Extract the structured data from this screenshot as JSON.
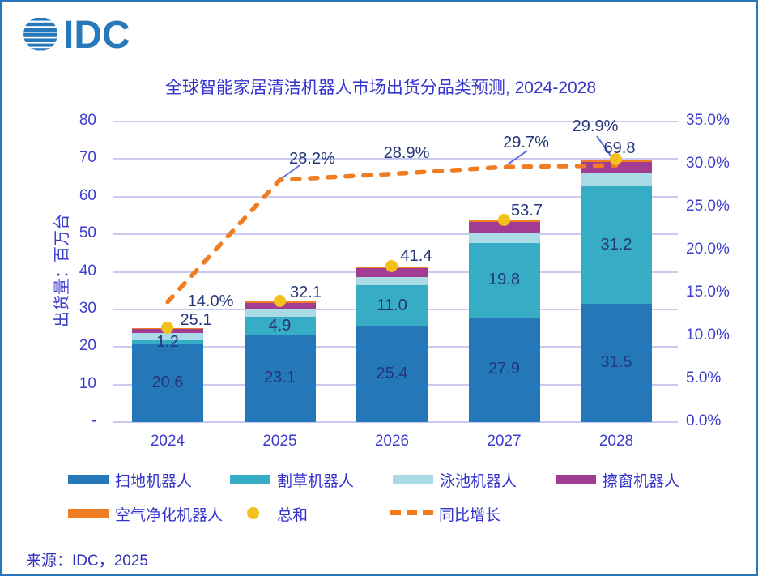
{
  "logo": {
    "text": "IDC"
  },
  "title": "全球智能家居清洁机器人市场出货分品类预测, 2024-2028",
  "source": "来源：IDC，2025",
  "colors": {
    "frame_border": "#2878BC",
    "axis_text": "#3C3CCE",
    "data_label_text": "#25357A",
    "gridline": "#C8CAF1",
    "leader_line": "#6272DC",
    "title_text": "#3434CE",
    "legend_text": "#3333CC"
  },
  "chart_data": {
    "type": "bar",
    "subtype": "stacked-columns-with-growth-line",
    "title": "全球智能家居清洁机器人市场出货分品类预测, 2024-2028",
    "categories": [
      "2024",
      "2025",
      "2026",
      "2027",
      "2028"
    ],
    "series": [
      {
        "name": "扫地机器人",
        "color": "#2478B8",
        "values": [
          20.6,
          23.1,
          25.4,
          27.9,
          31.5
        ],
        "labels": [
          "20.6",
          "23.1",
          "25.4",
          "27.9",
          "31.5"
        ],
        "estimated": false
      },
      {
        "name": "割草机器人",
        "color": "#36ADC5",
        "values": [
          1.2,
          4.9,
          11.0,
          19.8,
          31.2
        ],
        "labels": [
          "1.2",
          "4.9",
          "11.0",
          "19.8",
          "31.2"
        ],
        "estimated": false
      },
      {
        "name": "泳池机器人",
        "color": "#A9DAE6",
        "values": [
          1.9,
          2.2,
          2.3,
          2.5,
          3.4
        ],
        "labels": null,
        "estimated": true
      },
      {
        "name": "擦窗机器人",
        "color": "#A23B92",
        "values": [
          1.0,
          1.5,
          2.2,
          3.0,
          3.2
        ],
        "labels": null,
        "estimated": true
      },
      {
        "name": "空气净化机器人",
        "color": "#F07D22",
        "values": [
          0.4,
          0.4,
          0.5,
          0.5,
          0.5
        ],
        "labels": null,
        "estimated": true
      }
    ],
    "totals": {
      "name": "总和",
      "marker": "dot",
      "marker_color": "#F2C11C",
      "values": [
        25.1,
        32.1,
        41.4,
        53.7,
        69.8
      ],
      "labels": [
        "25.1",
        "32.1",
        "41.4",
        "53.7",
        "69.8"
      ]
    },
    "growth_line": {
      "name": "同比增长",
      "style": "dashed",
      "color": "#F07D22",
      "values_pct": [
        14.0,
        28.2,
        28.9,
        29.7,
        29.9
      ],
      "labels": [
        "14.0%",
        "28.2%",
        "28.9%",
        "29.7%",
        "29.9%"
      ]
    },
    "y_left_axis": {
      "title": "出货量：百万台",
      "ticks": [
        "-",
        "10",
        "20",
        "30",
        "40",
        "50",
        "60",
        "70",
        "80"
      ],
      "min": 0,
      "max": 80
    },
    "y_right_axis": {
      "ticks": [
        "0.0%",
        "5.0%",
        "10.0%",
        "15.0%",
        "20.0%",
        "25.0%",
        "30.0%",
        "35.0%"
      ],
      "min": 0,
      "max": 35
    },
    "grid": "horizontal",
    "legend_position": "bottom"
  },
  "legend": {
    "row1": [
      {
        "label": "扫地机器人",
        "swatch": "#2478B8",
        "type": "bar"
      },
      {
        "label": "割草机器人",
        "swatch": "#36ADC5",
        "type": "bar"
      },
      {
        "label": "泳池机器人",
        "swatch": "#A9DAE6",
        "type": "bar"
      },
      {
        "label": "擦窗机器人",
        "swatch": "#A23B92",
        "type": "bar"
      }
    ],
    "row2": [
      {
        "label": "空气净化机器人",
        "swatch": "#F07D22",
        "type": "bar"
      },
      {
        "label": "总和",
        "swatch": "#F2C11C",
        "type": "dot"
      },
      {
        "label": "同比增长",
        "swatch": "#F07D22",
        "type": "dash"
      }
    ]
  }
}
